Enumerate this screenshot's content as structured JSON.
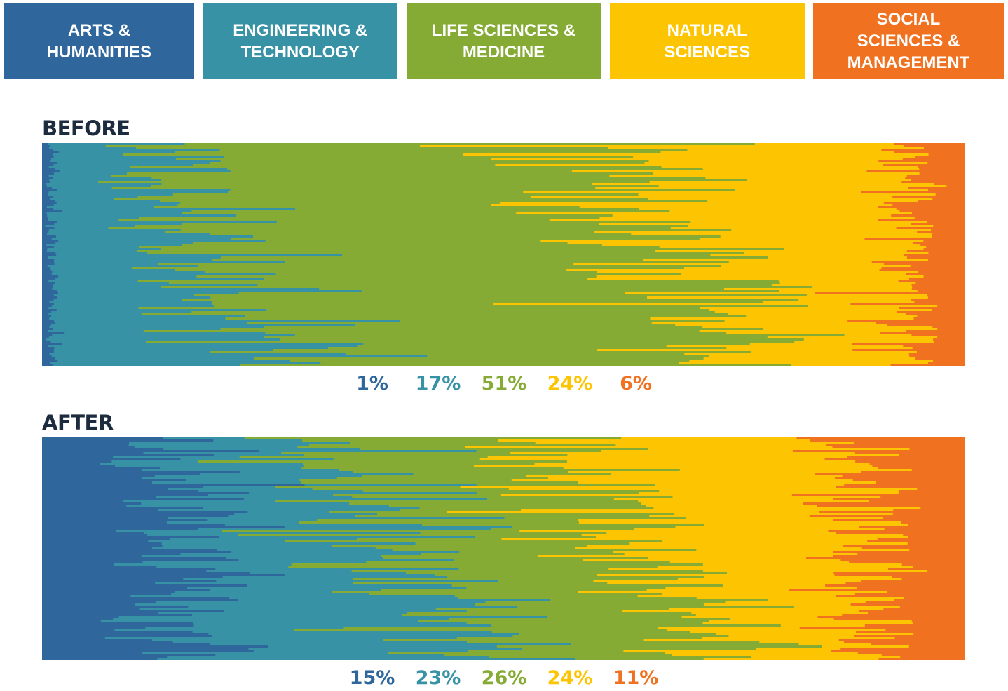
{
  "legend": [
    {
      "lines": [
        "ARTS &",
        "HUMANITIES"
      ],
      "color": "#2f679d"
    },
    {
      "lines": [
        "ENGINEERING &",
        "TECHNOLOGY"
      ],
      "color": "#3892a6"
    },
    {
      "lines": [
        "LIFE SCIENCES &",
        "MEDICINE"
      ],
      "color": "#86ab35"
    },
    {
      "lines": [
        "NATURAL",
        "SCIENCES"
      ],
      "color": "#fdc501"
    },
    {
      "lines": [
        "SOCIAL",
        "SCIENCES &",
        "MANAGEMENT"
      ],
      "color": "#f07220"
    }
  ],
  "chart_data": {
    "type": "bar",
    "orientation": "horizontal",
    "stacked": true,
    "normalized": true,
    "categories": [
      "ARTS & HUMANITIES",
      "ENGINEERING & TECHNOLOGY",
      "LIFE SCIENCES & MEDICINE",
      "NATURAL SCIENCES",
      "SOCIAL SCIENCES & MANAGEMENT"
    ],
    "colors": [
      "#2f679d",
      "#3892a6",
      "#86ab35",
      "#fdc501",
      "#f07220"
    ],
    "panels": [
      {
        "title": "BEFORE",
        "percent_labels": [
          "1%",
          "17%",
          "51%",
          "24%",
          "6%"
        ],
        "shares": [
          0.01,
          0.17,
          0.51,
          0.24,
          0.06
        ]
      },
      {
        "title": "AFTER",
        "percent_labels": [
          "15%",
          "23%",
          "26%",
          "24%",
          "11%"
        ],
        "shares": [
          0.15,
          0.23,
          0.26,
          0.24,
          0.11
        ]
      }
    ]
  }
}
